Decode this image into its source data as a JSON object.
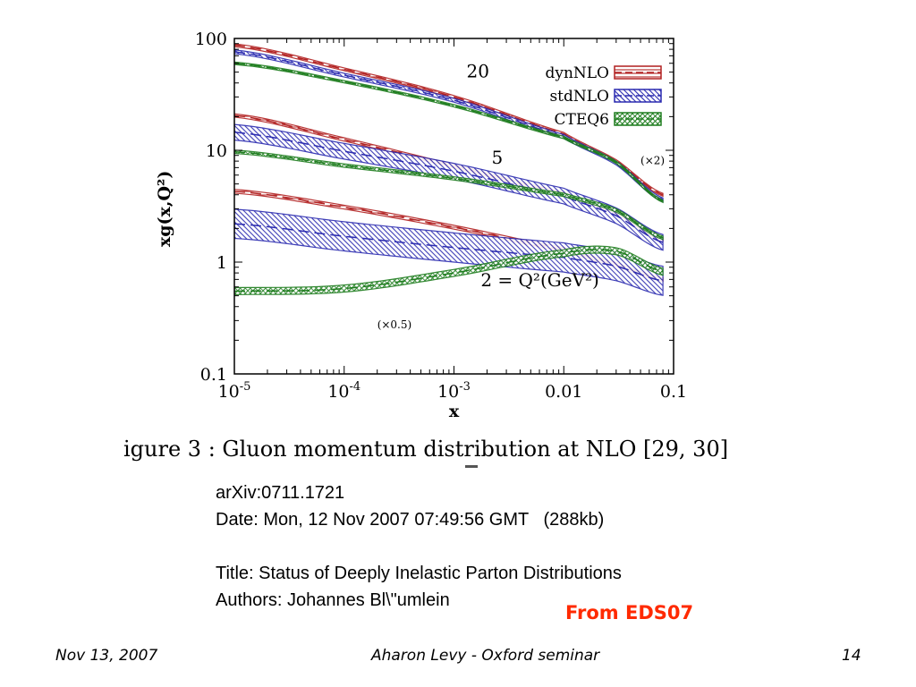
{
  "slide": {
    "caption": "igure 3 : Gluon momentum distribution at NLO [29, 30]",
    "arxiv": "arXiv:0711.1721",
    "date_line": "Date: Mon, 12 Nov 2007 07:49:56 GMT   (288kb)",
    "title_line": "Title: Status of Deeply Inelastic Parton Distributions",
    "authors_line": "Authors: Johannes Bl\\\"umlein",
    "source_note": "From EDS07",
    "footer_date": "Nov 13, 2007",
    "footer_center": "Aharon Levy - Oxford seminar",
    "page_number": "14"
  },
  "colors": {
    "dynNLO": "#b22222",
    "stdNLO": "#2b2bb0",
    "CTEQ6": "#1e7d1e"
  },
  "chart_data": {
    "type": "line",
    "xlabel": "x",
    "ylabel": "xg(x,Q²)",
    "xscale": "log",
    "yscale": "log",
    "xlim": [
      1e-05,
      0.1
    ],
    "ylim": [
      0.1,
      100
    ],
    "x_ticks": [
      {
        "value": 1e-05,
        "base": "10",
        "exp": "-5"
      },
      {
        "value": 0.0001,
        "base": "10",
        "exp": "-4"
      },
      {
        "value": 0.001,
        "base": "10",
        "exp": "-3"
      },
      {
        "value": 0.01,
        "base": "0.01",
        "exp": ""
      },
      {
        "value": 0.1,
        "base": "0.1",
        "exp": ""
      }
    ],
    "y_ticks": [
      {
        "value": 0.1,
        "label": "0.1"
      },
      {
        "value": 1,
        "label": "1"
      },
      {
        "value": 10,
        "label": "10"
      },
      {
        "value": 100,
        "label": "100"
      }
    ],
    "legend": {
      "position": "top-right",
      "entries": [
        {
          "name": "dynNLO",
          "color_key": "dynNLO"
        },
        {
          "name": "stdNLO",
          "color_key": "stdNLO"
        },
        {
          "name": "CTEQ6",
          "color_key": "CTEQ6"
        }
      ]
    },
    "x": [
      1e-05,
      0.0001,
      0.001,
      0.01,
      0.03,
      0.08
    ],
    "groups": [
      {
        "label": "20",
        "label_at": [
          0.0013,
          45
        ],
        "scale_note": "(×2)",
        "scale_note_at": [
          0.05,
          7.5
        ],
        "series": [
          {
            "name": "dynNLO",
            "center": [
              87,
              53,
              30,
              14,
              8,
              4.0
            ],
            "band": 0.06
          },
          {
            "name": "stdNLO",
            "center": [
              76,
              47,
              28,
              13.3,
              7.7,
              3.6
            ],
            "band": 0.08
          },
          {
            "name": "CTEQ6",
            "center": [
              60,
              41,
              25,
              13,
              7.8,
              3.5
            ],
            "band": 0.05
          }
        ]
      },
      {
        "label": "5",
        "label_at": [
          0.0022,
          7.6
        ],
        "scale_note": "",
        "scale_note_at": [
          0,
          0
        ],
        "series": [
          {
            "name": "dynNLO",
            "center": [
              20.5,
              12.5,
              7.2,
              4.1,
              2.8,
              1.6
            ],
            "band": 0.07
          },
          {
            "name": "stdNLO",
            "center": [
              14.5,
              9.8,
              6.5,
              3.9,
              2.6,
              1.5
            ],
            "band": 0.35
          },
          {
            "name": "CTEQ6",
            "center": [
              9.7,
              7.3,
              5.6,
              4.0,
              2.9,
              1.65
            ],
            "band": 0.07
          }
        ]
      },
      {
        "label": "2 = Q²(GeV²)",
        "label_at": [
          0.00175,
          0.61
        ],
        "scale_note": "(×0.5)",
        "scale_note_at": [
          0.0002,
          0.255
        ],
        "series": [
          {
            "name": "dynNLO",
            "center": [
              4.3,
              3.1,
              2.05,
              1.3,
              0.95,
              0.7
            ],
            "band": 0.08
          },
          {
            "name": "stdNLO",
            "center": [
              2.2,
              1.7,
              1.35,
              1.1,
              0.92,
              0.68
            ],
            "band": 0.7
          },
          {
            "name": "CTEQ6",
            "center": [
              0.55,
              0.58,
              0.8,
              1.2,
              1.25,
              0.82
            ],
            "band": 0.15
          }
        ]
      }
    ]
  }
}
